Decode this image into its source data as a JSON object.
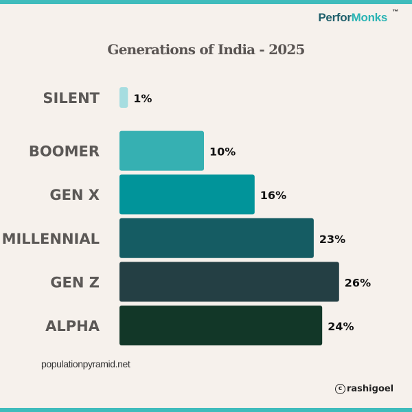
{
  "brand": {
    "part1": "Perfor",
    "part2": "Monks",
    "mark": "™",
    "color1": "#1f5f6b",
    "color2": "#2bb4b4"
  },
  "footer": {
    "source": "populationpyramid.net",
    "copyright_symbol": "c",
    "handle": "rashigoel"
  },
  "colors": {
    "background": "#f6f1ec",
    "edge": "#3fbcbc",
    "category_label": "#5b5856",
    "value_label": "#111111"
  },
  "chart_data": {
    "type": "bar",
    "orientation": "horizontal",
    "title": "Generations of India - 2025",
    "categories": [
      "SILENT",
      "BOOMER",
      "GEN X",
      "MILLENNIAL",
      "GEN Z",
      "ALPHA"
    ],
    "values": [
      1,
      10,
      16,
      23,
      26,
      24
    ],
    "value_labels": [
      "1%",
      "10%",
      "16%",
      "23%",
      "26%",
      "24%"
    ],
    "bar_colors": [
      "#a6dde0",
      "#36b0b2",
      "#01949a",
      "#155c63",
      "#243f44",
      "#123728"
    ],
    "xlim": [
      0,
      27
    ],
    "grid": false,
    "legend": "none"
  }
}
